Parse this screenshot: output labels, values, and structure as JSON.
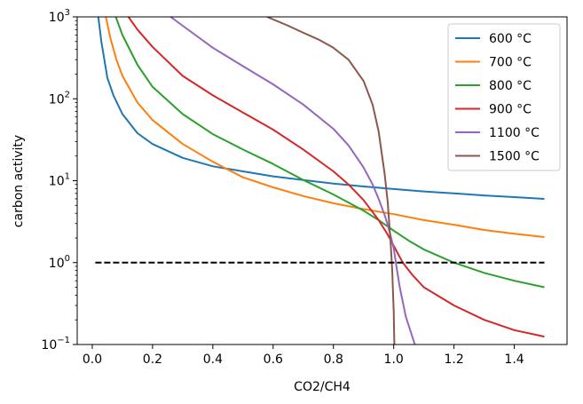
{
  "chart_data": {
    "type": "line",
    "title": "",
    "xlabel": "CO2/CH4",
    "ylabel": "carbon activity",
    "xlim": [
      -0.05,
      1.575
    ],
    "ylim": [
      0.1,
      1000
    ],
    "yscale": "log",
    "grid": false,
    "legend_position": "top-right",
    "x_ticks": [
      {
        "value": 0.0,
        "label": "0.0"
      },
      {
        "value": 0.2,
        "label": "0.2"
      },
      {
        "value": 0.4,
        "label": "0.4"
      },
      {
        "value": 0.6,
        "label": "0.6"
      },
      {
        "value": 0.8,
        "label": "0.8"
      },
      {
        "value": 1.0,
        "label": "1.0"
      },
      {
        "value": 1.2,
        "label": "1.2"
      },
      {
        "value": 1.4,
        "label": "1.4"
      }
    ],
    "y_ticks": [
      {
        "value": 0.1,
        "base": "10",
        "exp": "−1"
      },
      {
        "value": 1,
        "base": "10",
        "exp": "0"
      },
      {
        "value": 10,
        "base": "10",
        "exp": "1"
      },
      {
        "value": 100,
        "base": "10",
        "exp": "2"
      },
      {
        "value": 1000,
        "base": "10",
        "exp": "3"
      }
    ],
    "series": [
      {
        "name": "600 °C",
        "color": "#1f77b4",
        "x": [
          0.02,
          0.03,
          0.05,
          0.07,
          0.1,
          0.15,
          0.2,
          0.3,
          0.4,
          0.5,
          0.6,
          0.7,
          0.8,
          0.9,
          1.0,
          1.1,
          1.2,
          1.3,
          1.4,
          1.5
        ],
        "y": [
          1000,
          500,
          180,
          110,
          65,
          38,
          28,
          19,
          15,
          13,
          11.3,
          10.2,
          9.2,
          8.5,
          7.9,
          7.4,
          7.0,
          6.6,
          6.3,
          6.0
        ]
      },
      {
        "name": "700 °C",
        "color": "#ff7f0e",
        "x": [
          0.045,
          0.06,
          0.08,
          0.1,
          0.15,
          0.2,
          0.3,
          0.4,
          0.5,
          0.6,
          0.7,
          0.8,
          0.9,
          1.0,
          1.1,
          1.2,
          1.3,
          1.4,
          1.5
        ],
        "y": [
          1000,
          550,
          300,
          190,
          90,
          55,
          28,
          17,
          11,
          8.3,
          6.5,
          5.3,
          4.5,
          3.9,
          3.3,
          2.9,
          2.5,
          2.25,
          2.05
        ]
      },
      {
        "name": "800 °C",
        "color": "#2ca02c",
        "x": [
          0.078,
          0.1,
          0.15,
          0.2,
          0.3,
          0.4,
          0.5,
          0.6,
          0.7,
          0.8,
          0.9,
          0.95,
          1.0,
          1.05,
          1.1,
          1.2,
          1.3,
          1.4,
          1.5
        ],
        "y": [
          1000,
          600,
          260,
          140,
          65,
          37,
          24,
          16,
          10.2,
          6.8,
          4.3,
          3.3,
          2.45,
          1.85,
          1.45,
          1.0,
          0.75,
          0.6,
          0.5
        ]
      },
      {
        "name": "900 °C",
        "color": "#d62728",
        "x": [
          0.12,
          0.15,
          0.2,
          0.3,
          0.4,
          0.5,
          0.6,
          0.7,
          0.8,
          0.85,
          0.9,
          0.95,
          0.98,
          1.0,
          1.03,
          1.06,
          1.1,
          1.2,
          1.3,
          1.4,
          1.5
        ],
        "y": [
          1000,
          700,
          430,
          190,
          110,
          68,
          42,
          24,
          13,
          9,
          5.8,
          3.3,
          2.2,
          1.6,
          1.0,
          0.72,
          0.5,
          0.3,
          0.2,
          0.15,
          0.125
        ]
      },
      {
        "name": "1100 °C",
        "color": "#9467bd",
        "x": [
          0.26,
          0.3,
          0.4,
          0.5,
          0.6,
          0.7,
          0.8,
          0.85,
          0.9,
          0.93,
          0.95,
          0.97,
          0.98,
          0.99,
          1.0,
          1.01,
          1.02,
          1.04,
          1.06,
          1.07
        ],
        "y": [
          1000,
          780,
          420,
          250,
          150,
          85,
          43,
          27,
          14.5,
          9.0,
          6.0,
          3.8,
          2.9,
          2.1,
          1.5,
          0.85,
          0.5,
          0.22,
          0.13,
          0.1
        ]
      },
      {
        "name": "1500 °C",
        "color": "#8c564b",
        "x": [
          0.58,
          0.65,
          0.7,
          0.75,
          0.8,
          0.85,
          0.9,
          0.93,
          0.95,
          0.97,
          0.98,
          0.99,
          0.995,
          1.0,
          1.002
        ],
        "y": [
          1000,
          780,
          640,
          530,
          420,
          300,
          165,
          85,
          40,
          12,
          5.5,
          1.7,
          0.8,
          0.25,
          0.1
        ]
      },
      {
        "name": "carbon activity = 1",
        "color": "#000000",
        "dashed": true,
        "in_legend": false,
        "x": [
          0.01,
          1.5
        ],
        "y": [
          1,
          1
        ]
      }
    ]
  }
}
